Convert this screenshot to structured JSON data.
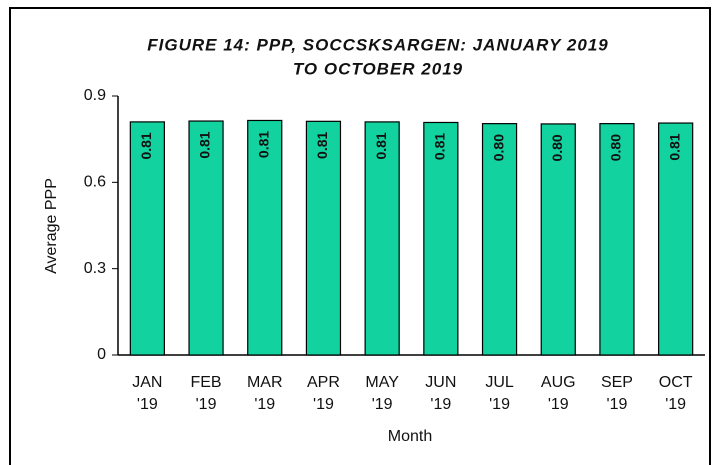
{
  "chart_data": {
    "type": "bar",
    "title": [
      "FIGURE 14: PPP, SOCCSKSARGEN: JANUARY 2019",
      "TO OCTOBER 2019"
    ],
    "x_label": "Month",
    "y_label": "Average PPP",
    "categories": [
      "JAN '19",
      "FEB '19",
      "MAR '19",
      "APR '19",
      "MAY '19",
      "JUN '19",
      "JUL '19",
      "AUG '19",
      "SEP '19",
      "OCT '19"
    ],
    "values": [
      0.81,
      0.813,
      0.815,
      0.812,
      0.81,
      0.808,
      0.804,
      0.803,
      0.804,
      0.806
    ],
    "value_labels": [
      "0.81",
      "0.81",
      "0.81",
      "0.81",
      "0.81",
      "0.81",
      "0.80",
      "0.80",
      "0.80",
      "0.81"
    ],
    "color": "#12d39f",
    "ylim": [
      0,
      0.9
    ],
    "yticks": [
      0,
      0.3,
      0.6,
      0.9
    ],
    "grid": false
  }
}
